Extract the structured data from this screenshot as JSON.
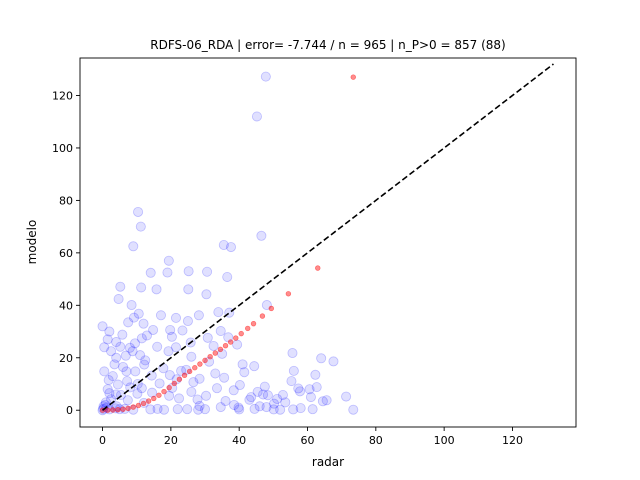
{
  "chart_data": {
    "type": "scatter",
    "title": "RDFS-06_RDA | error= -7.744 / n = 965 | n_P>0 = 857 (88)",
    "xlabel": "radar",
    "ylabel": "modelo",
    "xlim": [
      -6.6,
      138.6
    ],
    "ylim": [
      -6.4,
      134.3
    ],
    "xticks": [
      0,
      20,
      40,
      60,
      80,
      100,
      120
    ],
    "yticks": [
      0,
      20,
      40,
      60,
      80,
      100,
      120
    ],
    "grid": false,
    "legend": "none",
    "colors": {
      "observed": "#0000ff",
      "fitted": "#ff0000",
      "identity_line": "#000000"
    },
    "reference_line": {
      "style": "dashed",
      "from": [
        0,
        0
      ],
      "to": [
        132,
        132
      ]
    },
    "series": [
      {
        "role": "observed",
        "marker": "circle-large-translucent",
        "points": [
          [
            47.8,
            127.2
          ],
          [
            45.2,
            112.0
          ],
          [
            10.4,
            75.6
          ],
          [
            11.2,
            70.0
          ],
          [
            35.5,
            63.0
          ],
          [
            46.5,
            66.5
          ],
          [
            37.6,
            62.2
          ],
          [
            9.0,
            62.5
          ],
          [
            19.4,
            57.0
          ],
          [
            25.2,
            53.0
          ],
          [
            30.6,
            52.8
          ],
          [
            14.1,
            52.4
          ],
          [
            19.0,
            52.5
          ],
          [
            5.2,
            47.1
          ],
          [
            11.3,
            46.8
          ],
          [
            15.8,
            46.1
          ],
          [
            25.1,
            46.1
          ],
          [
            4.7,
            42.4
          ],
          [
            30.4,
            44.2
          ],
          [
            48.1,
            40.1
          ],
          [
            36.5,
            50.8
          ],
          [
            33.9,
            37.4
          ],
          [
            37.1,
            37.2
          ],
          [
            10.6,
            36.8
          ],
          [
            8.5,
            40.1
          ],
          [
            9.2,
            35.3
          ],
          [
            17.1,
            36.2
          ],
          [
            28.2,
            36.2
          ],
          [
            21.5,
            35.2
          ],
          [
            25.0,
            34.0
          ],
          [
            12.0,
            33.0
          ],
          [
            7.5,
            33.5
          ],
          [
            0.0,
            32.0
          ],
          [
            2.0,
            30.0
          ],
          [
            14.8,
            30.6
          ],
          [
            19.8,
            30.6
          ],
          [
            23.4,
            30.4
          ],
          [
            34.6,
            30.2
          ],
          [
            5.8,
            28.8
          ],
          [
            13.0,
            28.5
          ],
          [
            20.3,
            28.0
          ],
          [
            1.5,
            27.0
          ],
          [
            11.5,
            27.4
          ],
          [
            30.8,
            27.6
          ],
          [
            36.8,
            27.8
          ],
          [
            4.0,
            26.0
          ],
          [
            9.5,
            25.5
          ],
          [
            25.8,
            25.8
          ],
          [
            39.4,
            25.0
          ],
          [
            0.5,
            24.0
          ],
          [
            5.2,
            24.2
          ],
          [
            8.0,
            23.8
          ],
          [
            16.0,
            24.2
          ],
          [
            21.5,
            24.0
          ],
          [
            32.5,
            24.5
          ],
          [
            2.5,
            22.5
          ],
          [
            8.8,
            22.5
          ],
          [
            19.3,
            22.5
          ],
          [
            55.6,
            21.8
          ],
          [
            64.0,
            19.8
          ],
          [
            35.0,
            21.5
          ],
          [
            11.0,
            21.0
          ],
          [
            4.0,
            20.0
          ],
          [
            26.0,
            20.4
          ],
          [
            12.5,
            19.0
          ],
          [
            67.6,
            18.6
          ],
          [
            41.0,
            17.5
          ],
          [
            56.0,
            15.0
          ],
          [
            23.0,
            15.0
          ],
          [
            0.5,
            14.8
          ],
          [
            7.0,
            14.8
          ],
          [
            3.0,
            13.0
          ],
          [
            28.4,
            12.0
          ],
          [
            47.5,
            9.0
          ],
          [
            57.8,
            7.2
          ],
          [
            60.6,
            8.0
          ],
          [
            61.0,
            5.0
          ],
          [
            43.5,
            5.0
          ],
          [
            71.3,
            5.2
          ],
          [
            65.6,
            3.8
          ],
          [
            64.5,
            3.4
          ],
          [
            36.0,
            3.5
          ],
          [
            61.5,
            0.4
          ],
          [
            52.0,
            0.2
          ],
          [
            55.8,
            0.3
          ],
          [
            73.4,
            0.2
          ],
          [
            44.5,
            0.5
          ],
          [
            40.0,
            0.3
          ],
          [
            30.0,
            0.4
          ],
          [
            28.0,
            0.2
          ],
          [
            2.0,
            0.3
          ],
          [
            5.0,
            0.4
          ],
          [
            9.0,
            0.2
          ],
          [
            14.0,
            0.3
          ],
          [
            18.0,
            0.2
          ],
          [
            22.0,
            0.4
          ],
          [
            48.0,
            1.2
          ],
          [
            38.5,
            2.0
          ],
          [
            50.2,
            2.5
          ],
          [
            57.3,
            8.3
          ],
          [
            62.3,
            13.5
          ],
          [
            55.3,
            11.1
          ],
          [
            48.4,
            5.7
          ],
          [
            45.4,
            7.0
          ],
          [
            62.7,
            8.8
          ],
          [
            47.0,
            6.0
          ],
          [
            39.8,
            1.0
          ],
          [
            51.1,
            4.3
          ],
          [
            52.8,
            5.8
          ],
          [
            20.4,
            8.5
          ],
          [
            30.3,
            5.5
          ],
          [
            7.4,
            3.8
          ],
          [
            10.2,
            6.3
          ],
          [
            41.5,
            14.5
          ],
          [
            24.5,
            15.4
          ],
          [
            17.8,
            16.0
          ],
          [
            44.4,
            16.8
          ],
          [
            35.6,
            12.4
          ],
          [
            14.4,
            13.2
          ],
          [
            9.6,
            14.8
          ],
          [
            19.7,
            13.4
          ],
          [
            12.2,
            17.4
          ],
          [
            38.4,
            7.6
          ],
          [
            33.5,
            8.4
          ],
          [
            27.8,
            4.1
          ],
          [
            22.4,
            4.5
          ],
          [
            28.4,
            1.6
          ],
          [
            16.1,
            0.5
          ],
          [
            6.5,
            0.5
          ],
          [
            3.8,
            0.7
          ],
          [
            24.8,
            0.4
          ],
          [
            34.6,
            1.2
          ],
          [
            58.0,
            0.8
          ],
          [
            50.1,
            0.3
          ],
          [
            19.5,
            5.5
          ],
          [
            12.1,
            2.8
          ],
          [
            16.7,
            10.2
          ],
          [
            26.6,
            10.7
          ],
          [
            31.2,
            18.5
          ],
          [
            10.3,
            10.0
          ],
          [
            3.9,
            6.0
          ],
          [
            1.0,
            3.0
          ],
          [
            0.3,
            1.5
          ],
          [
            2.5,
            4.2
          ],
          [
            5.4,
            5.8
          ],
          [
            8.1,
            8.7
          ],
          [
            14.5,
            6.7
          ],
          [
            21.7,
            11.8
          ],
          [
            0.0,
            0.0
          ],
          [
            0.2,
            0.5
          ],
          [
            0.8,
            2.0
          ],
          [
            1.5,
            8.0
          ],
          [
            1.8,
            11.5
          ],
          [
            6.0,
            16.5
          ],
          [
            3.5,
            17.5
          ],
          [
            6.8,
            20.8
          ],
          [
            4.5,
            9.8
          ],
          [
            2.0,
            6.5
          ],
          [
            1.2,
            1.0
          ],
          [
            4.1,
            1.5
          ],
          [
            7.2,
            11.1
          ],
          [
            11.5,
            8.4
          ],
          [
            26.0,
            7.0
          ],
          [
            33.0,
            14.0
          ],
          [
            40.2,
            9.6
          ],
          [
            43.0,
            4.0
          ],
          [
            53.5,
            3.0
          ],
          [
            46.0,
            1.5
          ]
        ]
      },
      {
        "role": "fitted",
        "marker": "circle-small",
        "points": [
          [
            73.4,
            127.0
          ],
          [
            63.0,
            54.2
          ],
          [
            54.4,
            44.4
          ],
          [
            49.4,
            38.8
          ],
          [
            46.8,
            35.9
          ],
          [
            44.2,
            33.0
          ],
          [
            42.5,
            31.2
          ],
          [
            40.6,
            29.2
          ],
          [
            39.0,
            27.5
          ],
          [
            37.5,
            26.0
          ],
          [
            36.0,
            24.6
          ],
          [
            34.5,
            23.2
          ],
          [
            33.0,
            21.8
          ],
          [
            31.5,
            20.4
          ],
          [
            30.0,
            19.0
          ],
          [
            28.5,
            17.6
          ],
          [
            27.0,
            16.2
          ],
          [
            25.5,
            14.8
          ],
          [
            24.0,
            13.3
          ],
          [
            22.5,
            11.8
          ],
          [
            21.0,
            10.2
          ],
          [
            19.5,
            8.6
          ],
          [
            18.0,
            7.1
          ],
          [
            16.5,
            5.7
          ],
          [
            15.0,
            4.5
          ],
          [
            13.5,
            3.5
          ],
          [
            12.0,
            2.6
          ],
          [
            10.5,
            1.8
          ],
          [
            9.0,
            1.2
          ],
          [
            7.5,
            0.7
          ],
          [
            6.0,
            0.4
          ],
          [
            4.5,
            0.2
          ],
          [
            3.0,
            0.1
          ],
          [
            1.5,
            0.0
          ],
          [
            0.0,
            0.0
          ]
        ]
      }
    ]
  }
}
